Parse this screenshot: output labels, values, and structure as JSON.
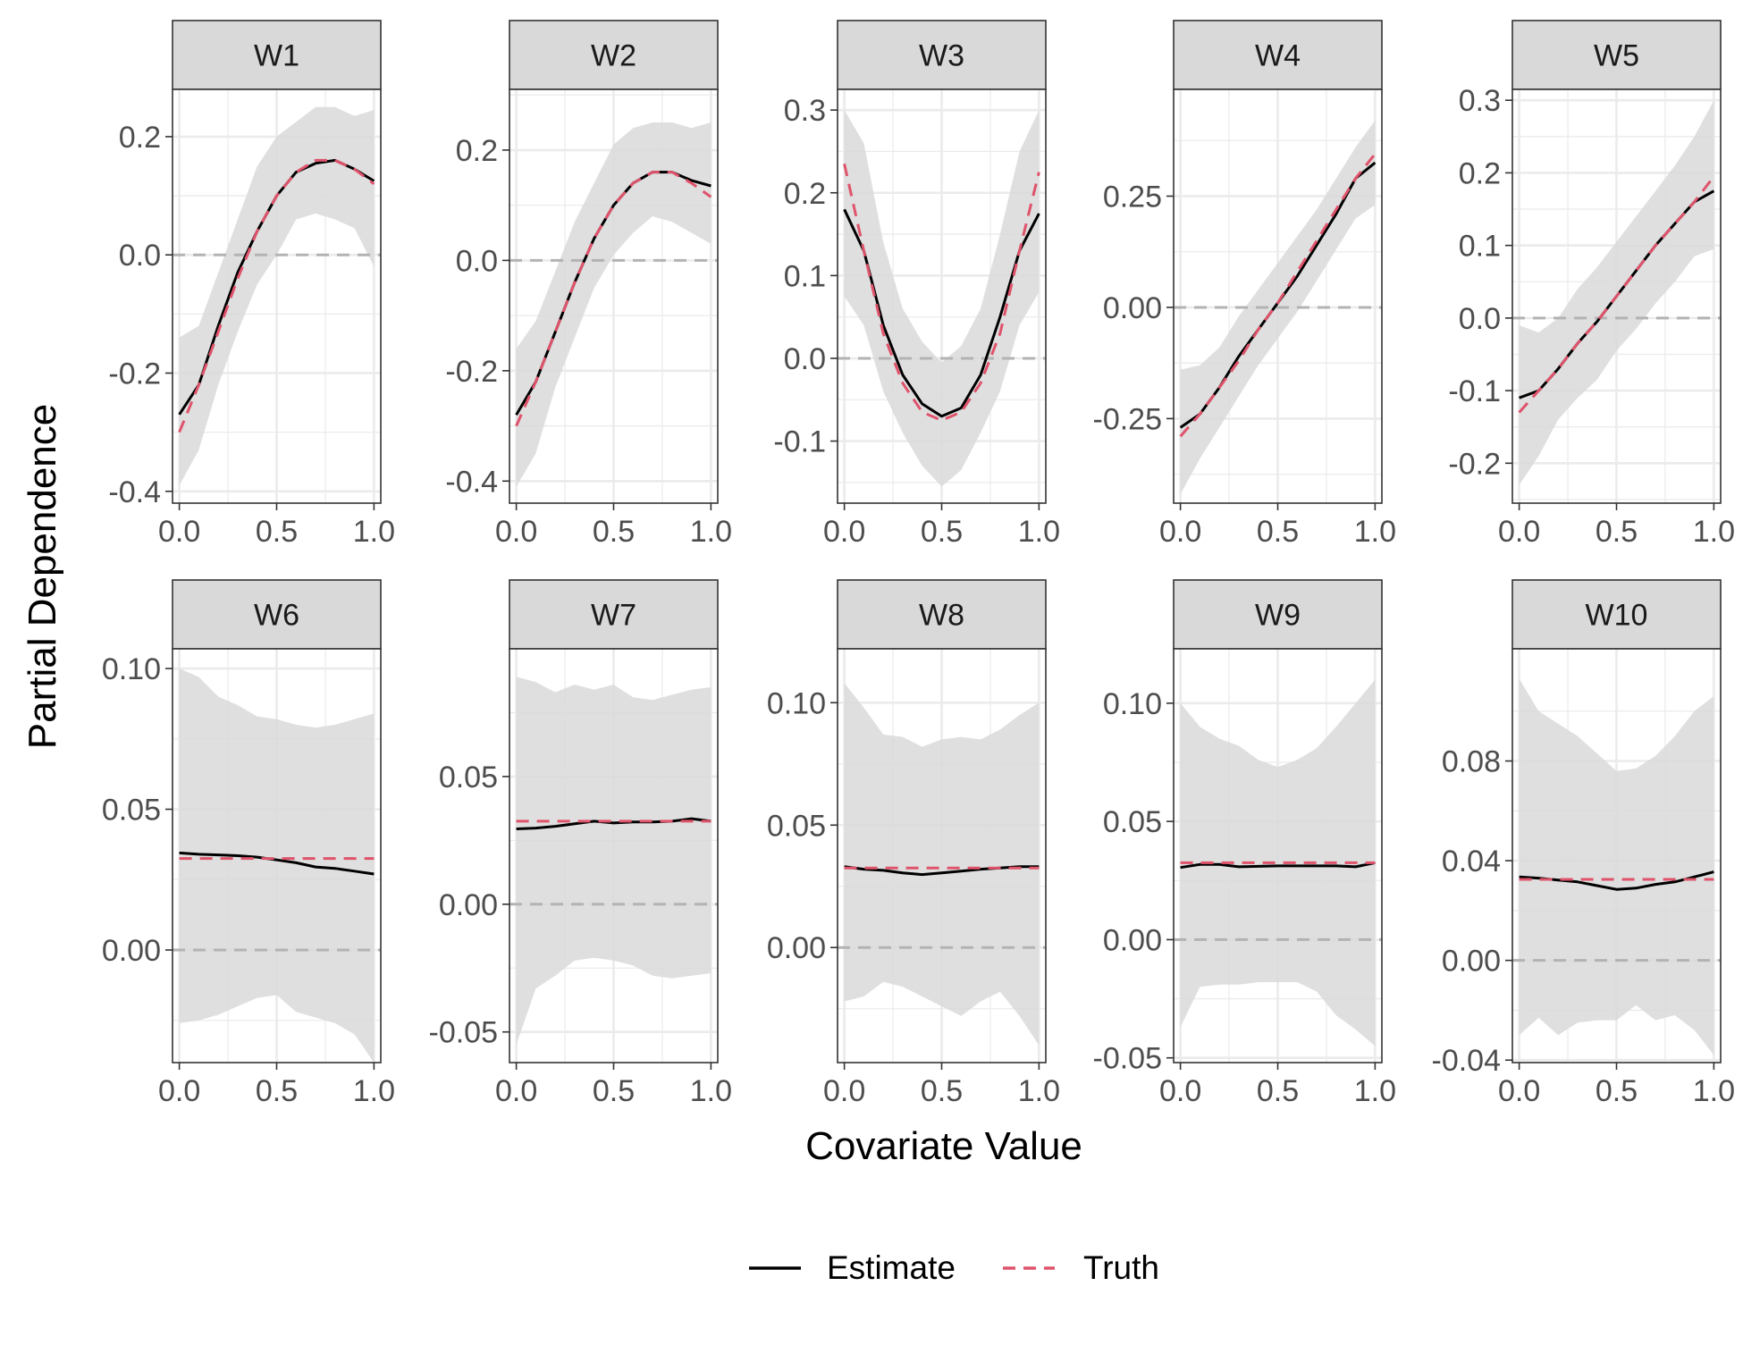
{
  "figure": {
    "xlabel": "Covariate Value",
    "ylabel": "Partial Dependence"
  },
  "legend": {
    "placement": "bottom",
    "items": [
      {
        "label": "Estimate",
        "color": "#000000",
        "style": "solid"
      },
      {
        "label": "Truth",
        "color": "#DF536B",
        "style": "dashed"
      }
    ]
  },
  "colors": {
    "band": "#D9D9D9",
    "strip": "#D9D9D9",
    "grid": "#EBEBEB",
    "zero_line": "#B3B3B3",
    "estimate": "#000000",
    "truth": "#DF536B"
  },
  "chart_data": [
    {
      "type": "line",
      "facet": "W1",
      "x": [
        0,
        0.1,
        0.2,
        0.3,
        0.4,
        0.5,
        0.6,
        0.7,
        0.8,
        0.9,
        1.0
      ],
      "ylim": [
        -0.42,
        0.28
      ],
      "yticks": [
        -0.4,
        -0.2,
        0.0,
        0.2
      ],
      "ytick_labels": [
        "-0.4",
        "-0.2",
        "0.0",
        "0.2"
      ],
      "xticks": [
        0,
        0.5,
        1
      ],
      "xtick_labels": [
        "0.0",
        "0.5",
        "1.0"
      ],
      "estimate": [
        -0.27,
        -0.22,
        -0.12,
        -0.03,
        0.04,
        0.1,
        0.14,
        0.155,
        0.16,
        0.145,
        0.125
      ],
      "truth": [
        -0.3,
        -0.22,
        -0.13,
        -0.04,
        0.04,
        0.1,
        0.14,
        0.16,
        0.16,
        0.145,
        0.12
      ],
      "lower": [
        -0.39,
        -0.33,
        -0.22,
        -0.13,
        -0.05,
        0.0,
        0.06,
        0.07,
        0.06,
        0.045,
        -0.02
      ],
      "upper": [
        -0.14,
        -0.12,
        -0.03,
        0.06,
        0.15,
        0.2,
        0.225,
        0.25,
        0.25,
        0.235,
        0.245
      ]
    },
    {
      "type": "line",
      "facet": "W2",
      "x": [
        0,
        0.1,
        0.2,
        0.3,
        0.4,
        0.5,
        0.6,
        0.7,
        0.8,
        0.9,
        1.0
      ],
      "ylim": [
        -0.44,
        0.31
      ],
      "yticks": [
        -0.4,
        -0.2,
        0.0,
        0.2
      ],
      "ytick_labels": [
        "-0.4",
        "-0.2",
        "0.0",
        "0.2"
      ],
      "xticks": [
        0,
        0.5,
        1
      ],
      "xtick_labels": [
        "0.0",
        "0.5",
        "1.0"
      ],
      "estimate": [
        -0.28,
        -0.22,
        -0.13,
        -0.04,
        0.04,
        0.1,
        0.14,
        0.16,
        0.16,
        0.145,
        0.135
      ],
      "truth": [
        -0.3,
        -0.22,
        -0.13,
        -0.04,
        0.04,
        0.1,
        0.14,
        0.16,
        0.16,
        0.14,
        0.115
      ],
      "lower": [
        -0.41,
        -0.35,
        -0.23,
        -0.14,
        -0.05,
        0.01,
        0.05,
        0.08,
        0.07,
        0.05,
        0.03
      ],
      "upper": [
        -0.16,
        -0.11,
        -0.02,
        0.07,
        0.14,
        0.21,
        0.24,
        0.25,
        0.25,
        0.24,
        0.25
      ]
    },
    {
      "type": "line",
      "facet": "W3",
      "x": [
        0,
        0.1,
        0.2,
        0.3,
        0.4,
        0.5,
        0.6,
        0.7,
        0.8,
        0.9,
        1.0
      ],
      "ylim": [
        -0.175,
        0.325
      ],
      "yticks": [
        -0.1,
        0.0,
        0.1,
        0.2,
        0.3
      ],
      "ytick_labels": [
        "-0.1",
        "0.0",
        "0.1",
        "0.2",
        "0.3"
      ],
      "xticks": [
        0,
        0.5,
        1
      ],
      "xtick_labels": [
        "0.0",
        "0.5",
        "1.0"
      ],
      "estimate": [
        0.18,
        0.13,
        0.04,
        -0.02,
        -0.055,
        -0.07,
        -0.06,
        -0.02,
        0.05,
        0.13,
        0.175
      ],
      "truth": [
        0.235,
        0.13,
        0.03,
        -0.03,
        -0.065,
        -0.075,
        -0.065,
        -0.03,
        0.03,
        0.13,
        0.225
      ],
      "lower": [
        0.075,
        0.04,
        -0.04,
        -0.09,
        -0.13,
        -0.155,
        -0.135,
        -0.09,
        -0.04,
        0.04,
        0.08
      ],
      "upper": [
        0.3,
        0.26,
        0.14,
        0.06,
        0.02,
        -0.005,
        0.015,
        0.06,
        0.15,
        0.25,
        0.3
      ]
    },
    {
      "type": "line",
      "facet": "W4",
      "x": [
        0,
        0.1,
        0.2,
        0.3,
        0.4,
        0.5,
        0.6,
        0.7,
        0.8,
        0.9,
        1.0
      ],
      "ylim": [
        -0.44,
        0.49
      ],
      "yticks": [
        -0.25,
        0.0,
        0.25
      ],
      "ytick_labels": [
        "-0.25",
        "0.00",
        "0.25"
      ],
      "xticks": [
        0,
        0.5,
        1
      ],
      "xtick_labels": [
        "0.0",
        "0.5",
        "1.0"
      ],
      "estimate": [
        -0.27,
        -0.24,
        -0.18,
        -0.11,
        -0.05,
        0.01,
        0.07,
        0.14,
        0.21,
        0.29,
        0.325
      ],
      "truth": [
        -0.29,
        -0.24,
        -0.18,
        -0.12,
        -0.05,
        0.01,
        0.08,
        0.15,
        0.22,
        0.29,
        0.345
      ],
      "lower": [
        -0.42,
        -0.34,
        -0.27,
        -0.2,
        -0.13,
        -0.07,
        -0.01,
        0.06,
        0.13,
        0.2,
        0.23
      ],
      "upper": [
        -0.14,
        -0.13,
        -0.09,
        -0.02,
        0.04,
        0.1,
        0.16,
        0.22,
        0.29,
        0.36,
        0.42
      ]
    },
    {
      "type": "line",
      "facet": "W5",
      "x": [
        0,
        0.1,
        0.2,
        0.3,
        0.4,
        0.5,
        0.6,
        0.7,
        0.8,
        0.9,
        1.0
      ],
      "ylim": [
        -0.255,
        0.315
      ],
      "yticks": [
        -0.2,
        -0.1,
        0.0,
        0.1,
        0.2,
        0.3
      ],
      "ytick_labels": [
        "-0.2",
        "-0.1",
        "0.0",
        "0.1",
        "0.2",
        "0.3"
      ],
      "xticks": [
        0,
        0.5,
        1
      ],
      "xtick_labels": [
        "0.0",
        "0.5",
        "1.0"
      ],
      "estimate": [
        -0.11,
        -0.1,
        -0.07,
        -0.035,
        -0.005,
        0.03,
        0.065,
        0.1,
        0.13,
        0.16,
        0.175
      ],
      "truth": [
        -0.13,
        -0.1,
        -0.07,
        -0.035,
        -0.005,
        0.03,
        0.065,
        0.1,
        0.13,
        0.16,
        0.195
      ],
      "lower": [
        -0.23,
        -0.19,
        -0.14,
        -0.11,
        -0.085,
        -0.045,
        -0.015,
        0.02,
        0.05,
        0.085,
        0.095
      ],
      "upper": [
        -0.01,
        -0.02,
        0.0,
        0.04,
        0.07,
        0.105,
        0.14,
        0.175,
        0.21,
        0.25,
        0.3
      ]
    },
    {
      "type": "line",
      "facet": "W6",
      "x": [
        0,
        0.1,
        0.2,
        0.3,
        0.4,
        0.5,
        0.6,
        0.7,
        0.8,
        0.9,
        1.0
      ],
      "ylim": [
        -0.04,
        0.107
      ],
      "yticks": [
        0.0,
        0.05,
        0.1
      ],
      "ytick_labels": [
        "0.00",
        "0.05",
        "0.10"
      ],
      "xticks": [
        0,
        0.5,
        1
      ],
      "xtick_labels": [
        "0.0",
        "0.5",
        "1.0"
      ],
      "estimate": [
        0.0345,
        0.034,
        0.0338,
        0.0335,
        0.033,
        0.032,
        0.031,
        0.0295,
        0.029,
        0.028,
        0.027
      ],
      "truth": [
        0.0325,
        0.0325,
        0.0325,
        0.0325,
        0.0325,
        0.0325,
        0.0325,
        0.0325,
        0.0325,
        0.0325,
        0.0325
      ],
      "lower": [
        -0.026,
        -0.025,
        -0.023,
        -0.02,
        -0.017,
        -0.016,
        -0.022,
        -0.024,
        -0.026,
        -0.03,
        -0.04
      ],
      "upper": [
        0.1,
        0.097,
        0.09,
        0.087,
        0.083,
        0.082,
        0.08,
        0.079,
        0.08,
        0.082,
        0.084
      ]
    },
    {
      "type": "line",
      "facet": "W7",
      "x": [
        0,
        0.1,
        0.2,
        0.3,
        0.4,
        0.5,
        0.6,
        0.7,
        0.8,
        0.9,
        1.0
      ],
      "ylim": [
        -0.062,
        0.1
      ],
      "yticks": [
        -0.05,
        0.0,
        0.05
      ],
      "ytick_labels": [
        "-0.05",
        "0.00",
        "0.05"
      ],
      "xticks": [
        0,
        0.5,
        1
      ],
      "xtick_labels": [
        "0.0",
        "0.5",
        "1.0"
      ],
      "estimate": [
        0.0295,
        0.0298,
        0.0305,
        0.0315,
        0.0325,
        0.0318,
        0.0322,
        0.0322,
        0.0325,
        0.0335,
        0.0325
      ],
      "truth": [
        0.0325,
        0.0325,
        0.0325,
        0.0325,
        0.0325,
        0.0325,
        0.0325,
        0.0325,
        0.0325,
        0.0325,
        0.0325
      ],
      "lower": [
        -0.055,
        -0.033,
        -0.028,
        -0.022,
        -0.021,
        -0.022,
        -0.024,
        -0.028,
        -0.029,
        -0.028,
        -0.027
      ],
      "upper": [
        0.089,
        0.087,
        0.083,
        0.086,
        0.084,
        0.086,
        0.081,
        0.08,
        0.082,
        0.084,
        0.085
      ]
    },
    {
      "type": "line",
      "facet": "W8",
      "x": [
        0,
        0.1,
        0.2,
        0.3,
        0.4,
        0.5,
        0.6,
        0.7,
        0.8,
        0.9,
        1.0
      ],
      "ylim": [
        -0.047,
        0.122
      ],
      "yticks": [
        0.0,
        0.05,
        0.1
      ],
      "ytick_labels": [
        "0.00",
        "0.05",
        "0.10"
      ],
      "xticks": [
        0,
        0.5,
        1
      ],
      "xtick_labels": [
        "0.0",
        "0.5",
        "1.0"
      ],
      "estimate": [
        0.033,
        0.032,
        0.0315,
        0.0305,
        0.0298,
        0.0305,
        0.0312,
        0.032,
        0.0325,
        0.033,
        0.033
      ],
      "truth": [
        0.0325,
        0.0325,
        0.0325,
        0.0325,
        0.0325,
        0.0325,
        0.0325,
        0.0325,
        0.0325,
        0.0325,
        0.0325
      ],
      "lower": [
        -0.022,
        -0.02,
        -0.014,
        -0.016,
        -0.02,
        -0.024,
        -0.028,
        -0.022,
        -0.018,
        -0.028,
        -0.04
      ],
      "upper": [
        0.108,
        0.098,
        0.087,
        0.086,
        0.082,
        0.085,
        0.086,
        0.085,
        0.089,
        0.095,
        0.1
      ]
    },
    {
      "type": "line",
      "facet": "W9",
      "x": [
        0,
        0.1,
        0.2,
        0.3,
        0.4,
        0.5,
        0.6,
        0.7,
        0.8,
        0.9,
        1.0
      ],
      "ylim": [
        -0.052,
        0.123
      ],
      "yticks": [
        -0.05,
        0.0,
        0.05,
        0.1
      ],
      "ytick_labels": [
        "-0.05",
        "0.00",
        "0.05",
        "0.10"
      ],
      "xticks": [
        0,
        0.5,
        1
      ],
      "xtick_labels": [
        "0.0",
        "0.5",
        "1.0"
      ],
      "estimate": [
        0.0305,
        0.0318,
        0.0318,
        0.0308,
        0.031,
        0.0312,
        0.0312,
        0.0312,
        0.0312,
        0.0308,
        0.0325
      ],
      "truth": [
        0.0325,
        0.0325,
        0.0325,
        0.0325,
        0.0325,
        0.0325,
        0.0325,
        0.0325,
        0.0325,
        0.0325,
        0.0325
      ],
      "lower": [
        -0.037,
        -0.02,
        -0.019,
        -0.019,
        -0.018,
        -0.018,
        -0.018,
        -0.022,
        -0.032,
        -0.038,
        -0.045
      ],
      "upper": [
        0.1,
        0.09,
        0.085,
        0.082,
        0.076,
        0.073,
        0.076,
        0.081,
        0.09,
        0.1,
        0.11
      ]
    },
    {
      "type": "line",
      "facet": "W10",
      "x": [
        0,
        0.1,
        0.2,
        0.3,
        0.4,
        0.5,
        0.6,
        0.7,
        0.8,
        0.9,
        1.0
      ],
      "ylim": [
        -0.041,
        0.125
      ],
      "yticks": [
        -0.04,
        0.0,
        0.04,
        0.08
      ],
      "ytick_labels": [
        "-0.04",
        "0.00",
        "0.04",
        "0.08"
      ],
      "xticks": [
        0,
        0.5,
        1
      ],
      "xtick_labels": [
        "0.0",
        "0.5",
        "1.0"
      ],
      "estimate": [
        0.0335,
        0.033,
        0.0322,
        0.0315,
        0.03,
        0.0285,
        0.029,
        0.0305,
        0.0315,
        0.0335,
        0.0355
      ],
      "truth": [
        0.0325,
        0.0325,
        0.0325,
        0.0325,
        0.0325,
        0.0325,
        0.0325,
        0.0325,
        0.0325,
        0.0325,
        0.0325
      ],
      "lower": [
        -0.03,
        -0.023,
        -0.03,
        -0.025,
        -0.024,
        -0.024,
        -0.018,
        -0.024,
        -0.022,
        -0.028,
        -0.038
      ],
      "upper": [
        0.113,
        0.1,
        0.095,
        0.09,
        0.083,
        0.076,
        0.077,
        0.082,
        0.09,
        0.1,
        0.106
      ]
    }
  ]
}
